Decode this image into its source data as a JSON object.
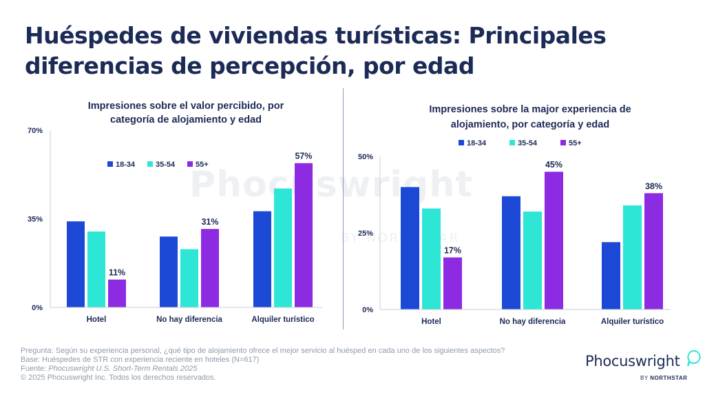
{
  "title_line1": "Huéspedes de viviendas turísticas: Principales",
  "title_line2": "diferencias de percepción, por edad",
  "watermark": {
    "main": "Phocuswright",
    "sub": "BY NORTHSTAR"
  },
  "colors": {
    "s1": "#1c48d6",
    "s2": "#2ee6d6",
    "s3": "#8c2be2",
    "title": "#1c2a56"
  },
  "chart_data": [
    {
      "type": "bar",
      "title_lines": [
        "Impresiones sobre el valor percibido, por",
        "categoría de alojamiento y edad"
      ],
      "categories": [
        "Hotel",
        "No hay diferencia",
        "Alquiler turístico"
      ],
      "series": [
        {
          "name": "18-34",
          "values": [
            34,
            28,
            38
          ]
        },
        {
          "name": "35-54",
          "values": [
            30,
            23,
            47
          ]
        },
        {
          "name": "55+",
          "values": [
            11,
            31,
            57
          ]
        }
      ],
      "data_labels": {
        "2": [
          "11%",
          "31%",
          "57%"
        ]
      },
      "yticks": [
        "70%",
        "35%",
        "0%"
      ],
      "ylim": [
        0,
        70
      ]
    },
    {
      "type": "bar",
      "title_lines": [
        "Impresiones sobre la major experiencia de",
        "alojamiento, por categoría y edad"
      ],
      "categories": [
        "Hotel",
        "No hay diferencia",
        "Alquiler turístico"
      ],
      "series": [
        {
          "name": "18-34",
          "values": [
            40,
            37,
            22
          ]
        },
        {
          "name": "35-54",
          "values": [
            33,
            32,
            34
          ]
        },
        {
          "name": "55+",
          "values": [
            17,
            45,
            38
          ]
        }
      ],
      "data_labels": {
        "2": [
          "17%",
          "45%",
          "38%"
        ]
      },
      "yticks": [
        "50%",
        "25%",
        "0%"
      ],
      "ylim": [
        0,
        50
      ]
    }
  ],
  "footer": {
    "question": "Pregunta: Según su experiencia personal, ¿qué tipo de alojamiento ofrece el mejor servicio al huésped en cada uno de los siguientes aspectos?",
    "base": "Base: Huéspedes de STR con experiencia reciente en hoteles (N=617)",
    "source_prefix": "Fuente: ",
    "source_title": "Phocuswright U.S. Short-Term Rentals 2025",
    "copyright": "© 2025 Phocuswright Inc. Todos los derechos reservados."
  },
  "logo": {
    "name": "Phocuswright",
    "by": "BY",
    "brand": "NORTHSTAR"
  }
}
